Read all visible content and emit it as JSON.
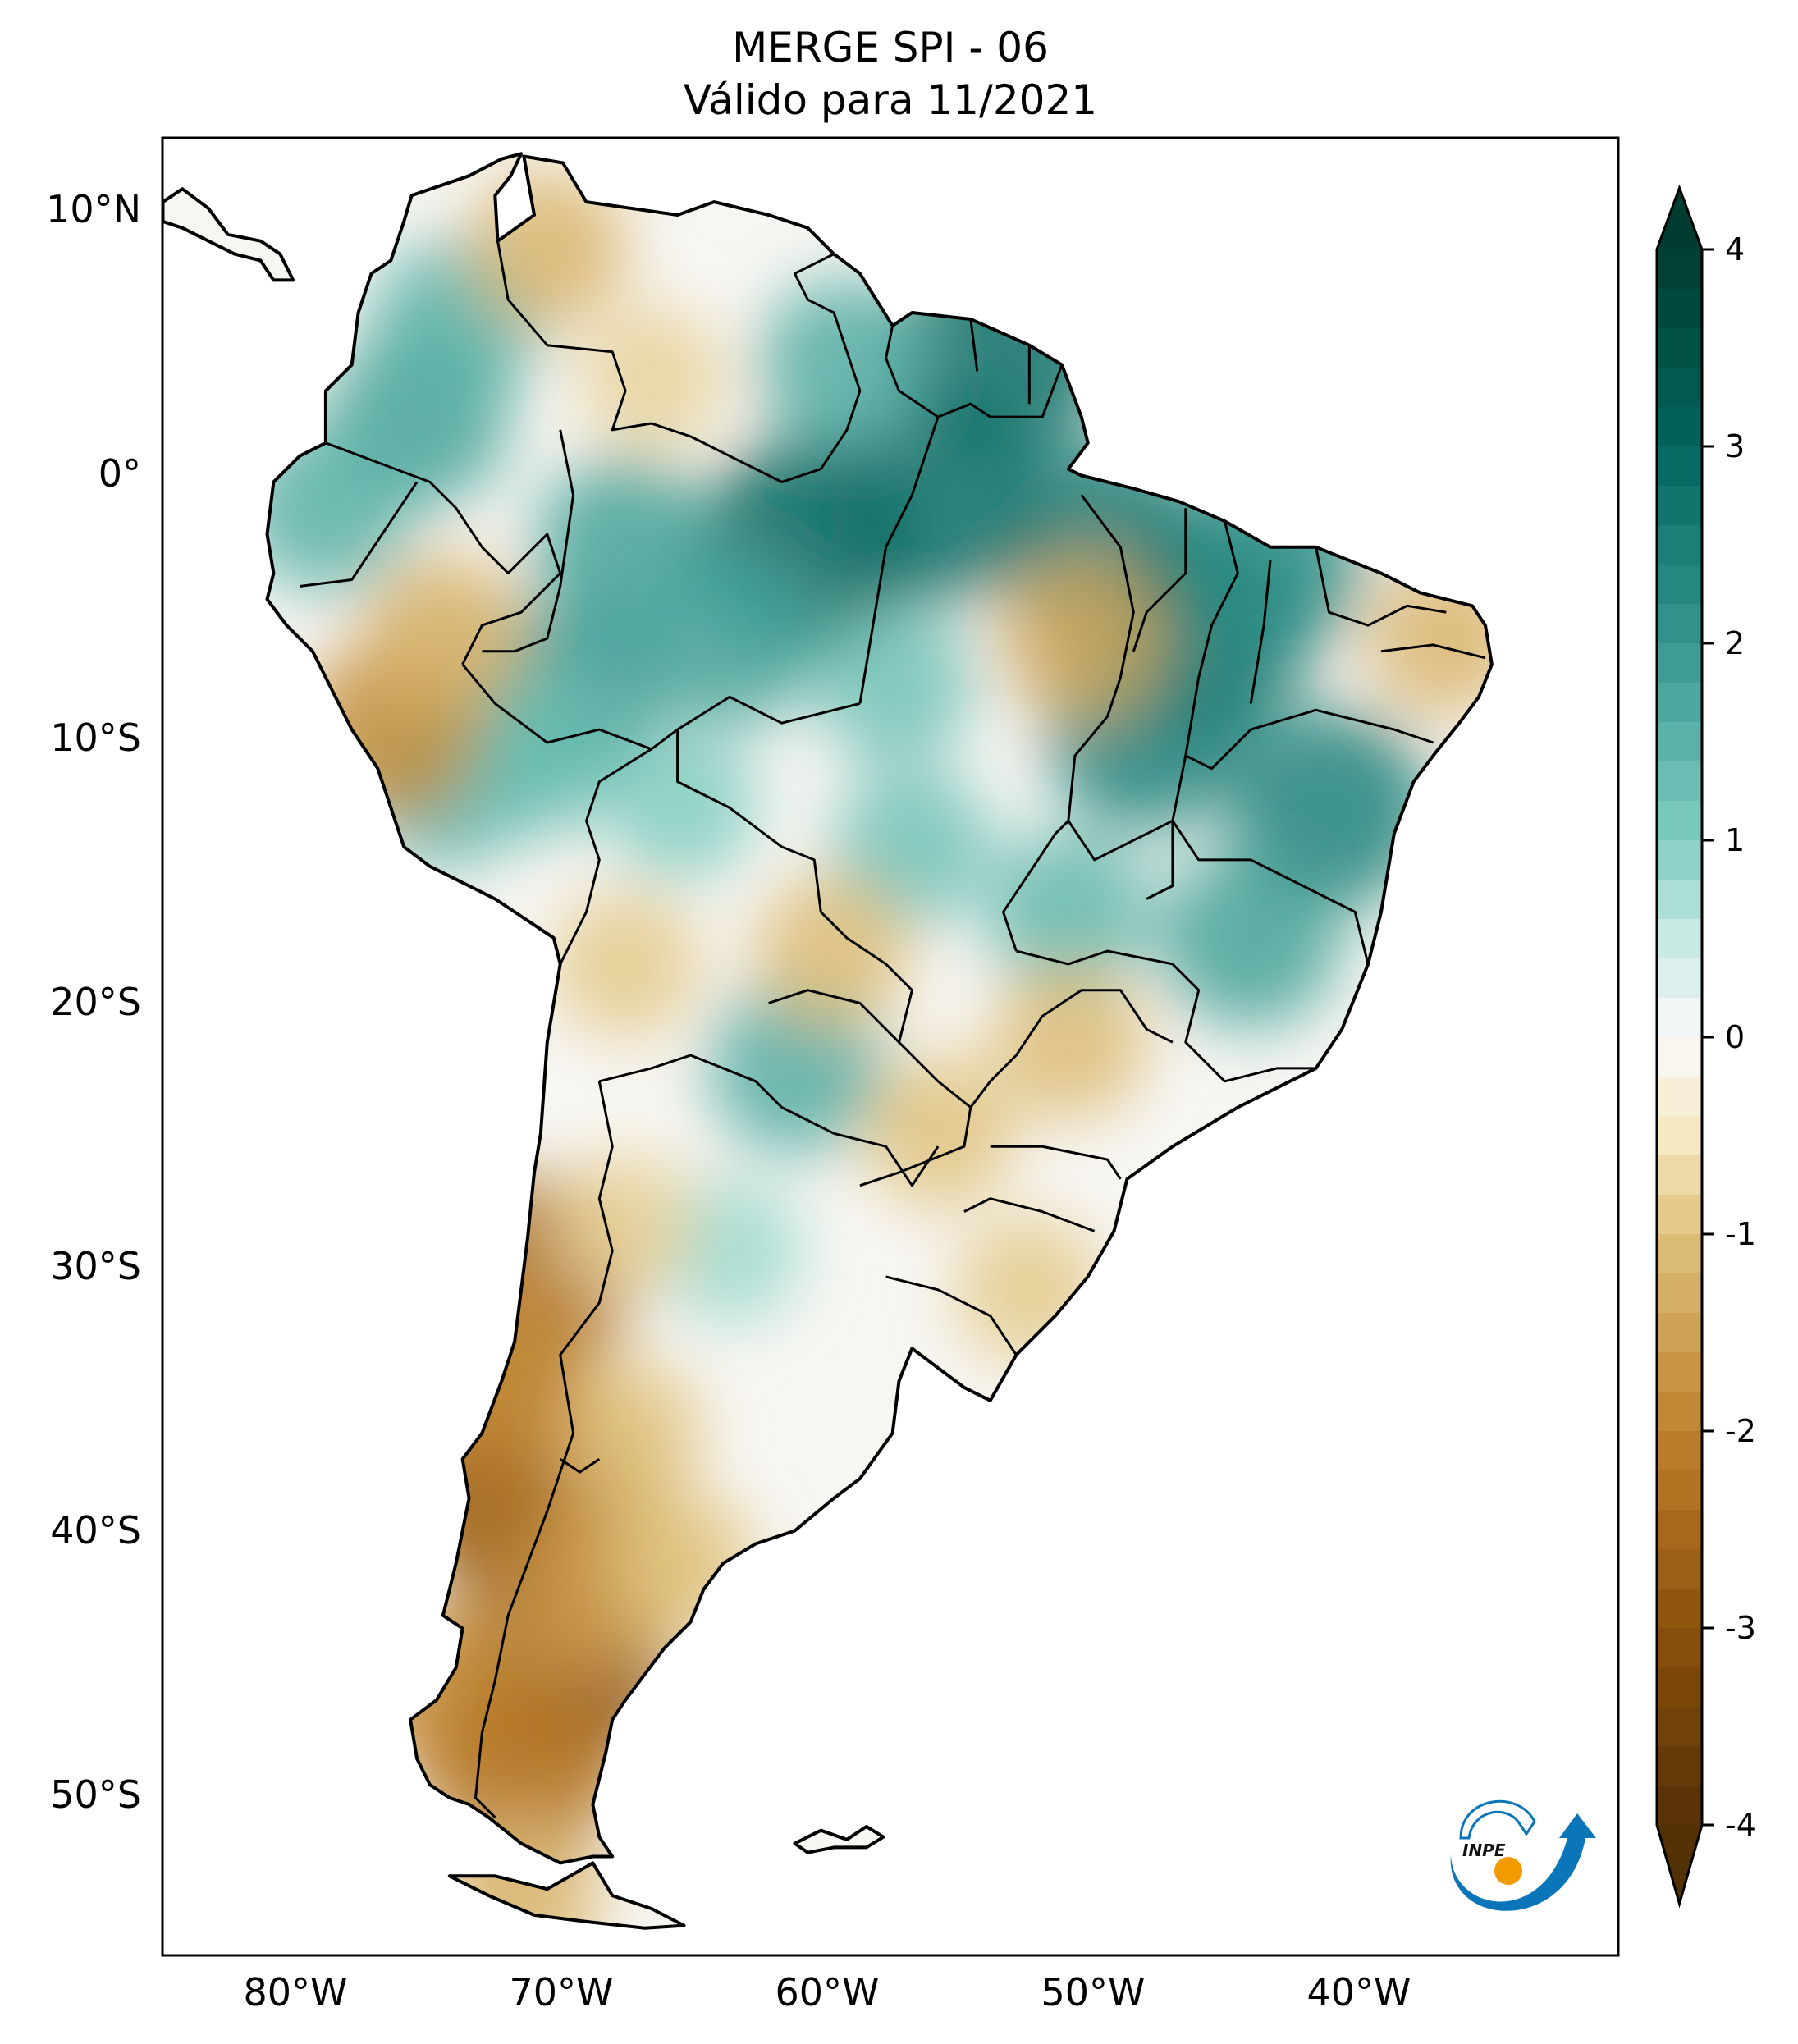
{
  "chart_data": {
    "type": "heatmap",
    "title": "MERGE   SPI - 06",
    "subtitle": "Válido para 11/2021",
    "xlabel": "",
    "ylabel": "",
    "x_ticks": [
      {
        "value": -80,
        "label": "80°W"
      },
      {
        "value": -70,
        "label": "70°W"
      },
      {
        "value": -60,
        "label": "60°W"
      },
      {
        "value": -50,
        "label": "50°W"
      },
      {
        "value": -40,
        "label": "40°W"
      }
    ],
    "y_ticks": [
      {
        "value": 10,
        "label": "10°N"
      },
      {
        "value": 0,
        "label": "0°"
      },
      {
        "value": -10,
        "label": "10°S"
      },
      {
        "value": -20,
        "label": "20°S"
      },
      {
        "value": -30,
        "label": "30°S"
      },
      {
        "value": -40,
        "label": "40°S"
      },
      {
        "value": -50,
        "label": "50°S"
      }
    ],
    "xlim": [
      -85,
      -30
    ],
    "ylim": [
      -56,
      13
    ],
    "grid": false,
    "colormap": "BrBG",
    "colorbar": {
      "range": [
        -4,
        4
      ],
      "extend": "both",
      "ticks": [
        {
          "value": 4,
          "label": "4"
        },
        {
          "value": 3,
          "label": "3"
        },
        {
          "value": 2,
          "label": "2"
        },
        {
          "value": 1,
          "label": "1"
        },
        {
          "value": 0,
          "label": "0"
        },
        {
          "value": -1,
          "label": "-1"
        },
        {
          "value": -2,
          "label": "-2"
        },
        {
          "value": -3,
          "label": "-3"
        },
        {
          "value": -4,
          "label": "-4"
        }
      ],
      "placement": "right"
    },
    "field_samples": [
      {
        "lon": -60.7,
        "lat": -2.8,
        "spi": 3.0
      },
      {
        "lon": -55.8,
        "lat": -0.8,
        "spi": 2.8
      },
      {
        "lon": -53.4,
        "lat": 4.6,
        "spi": 2.8
      },
      {
        "lon": -49.5,
        "lat": -2.8,
        "spi": 2.6
      },
      {
        "lon": -46.0,
        "lat": -6.2,
        "spi": 2.8
      },
      {
        "lon": -48.0,
        "lat": -9.7,
        "spi": 2.4
      },
      {
        "lon": -41.1,
        "lat": -12.7,
        "spi": 2.4
      },
      {
        "lon": -75.4,
        "lat": 2.1,
        "spi": 1.8
      },
      {
        "lon": -74.0,
        "lat": 5.6,
        "spi": 1.5
      },
      {
        "lon": -78.9,
        "lat": -1.3,
        "spi": 1.5
      },
      {
        "lon": -67.6,
        "lat": -2.8,
        "spi": 1.8
      },
      {
        "lon": -63.7,
        "lat": -6.2,
        "spi": 1.8
      },
      {
        "lon": -69.5,
        "lat": -8.2,
        "spi": 1.9
      },
      {
        "lon": -59.3,
        "lat": 4.1,
        "spi": 1.6
      },
      {
        "lon": -74.4,
        "lat": -11.7,
        "spi": 1.5
      },
      {
        "lon": -71.0,
        "lat": -10.7,
        "spi": 1.3
      },
      {
        "lon": -44.1,
        "lat": -17.6,
        "spi": 1.8
      },
      {
        "lon": -50.9,
        "lat": -16.6,
        "spi": 1.4
      },
      {
        "lon": -61.2,
        "lat": -22.5,
        "spi": 1.6
      },
      {
        "lon": -56.8,
        "lat": -14.1,
        "spi": 1.2
      },
      {
        "lon": -63.7,
        "lat": -29.4,
        "spi": 0.8
      },
      {
        "lon": -43.5,
        "lat": -3.5,
        "spi": 2.2
      },
      {
        "lon": -57.5,
        "lat": -8.0,
        "spi": 1.2
      },
      {
        "lon": -65.5,
        "lat": -12.5,
        "spi": 1.0
      },
      {
        "lon": -76.4,
        "lat": -9.7,
        "spi": -1.8
      },
      {
        "lon": -74.4,
        "lat": -6.2,
        "spi": -1.3
      },
      {
        "lon": -70.5,
        "lat": 8.5,
        "spi": -1.2
      },
      {
        "lon": -66.6,
        "lat": 3.6,
        "spi": -0.8
      },
      {
        "lon": -50.4,
        "lat": -6.2,
        "spi": -1.4
      },
      {
        "lon": -36.7,
        "lat": -6.2,
        "spi": -1.2
      },
      {
        "lon": -59.8,
        "lat": -18.1,
        "spi": -1.1
      },
      {
        "lon": -67.6,
        "lat": -18.6,
        "spi": -0.9
      },
      {
        "lon": -55.8,
        "lat": -24.9,
        "spi": -1.0
      },
      {
        "lon": -50.9,
        "lat": -21.5,
        "spi": -1.1
      },
      {
        "lon": -52.4,
        "lat": -30.9,
        "spi": -0.9
      },
      {
        "lon": -71.0,
        "lat": -30.4,
        "spi": -2.4
      },
      {
        "lon": -72.2,
        "lat": -38.3,
        "spi": -2.8
      },
      {
        "lon": -70.0,
        "lat": -39.3,
        "spi": -2.4
      },
      {
        "lon": -70.0,
        "lat": -45.2,
        "spi": -3.0
      },
      {
        "lon": -68.6,
        "lat": -42.2,
        "spi": -1.6
      },
      {
        "lon": -74.0,
        "lat": -46.2,
        "spi": -1.8
      },
      {
        "lon": -71.5,
        "lat": -49.2,
        "spi": -2.2
      },
      {
        "lon": -67.6,
        "lat": -36.3,
        "spi": -1.0
      },
      {
        "lon": -65.6,
        "lat": -41.3,
        "spi": -1.0
      },
      {
        "lon": -67.6,
        "lat": -28.4,
        "spi": -0.8
      },
      {
        "lon": -71.5,
        "lat": -54.1,
        "spi": -1.2
      },
      {
        "lon": -72.5,
        "lat": -34.0,
        "spi": -1.9
      }
    ]
  },
  "logo": {
    "text": "INPE",
    "arrow_color": "#0a75b8",
    "sun_color": "#f29a00"
  }
}
